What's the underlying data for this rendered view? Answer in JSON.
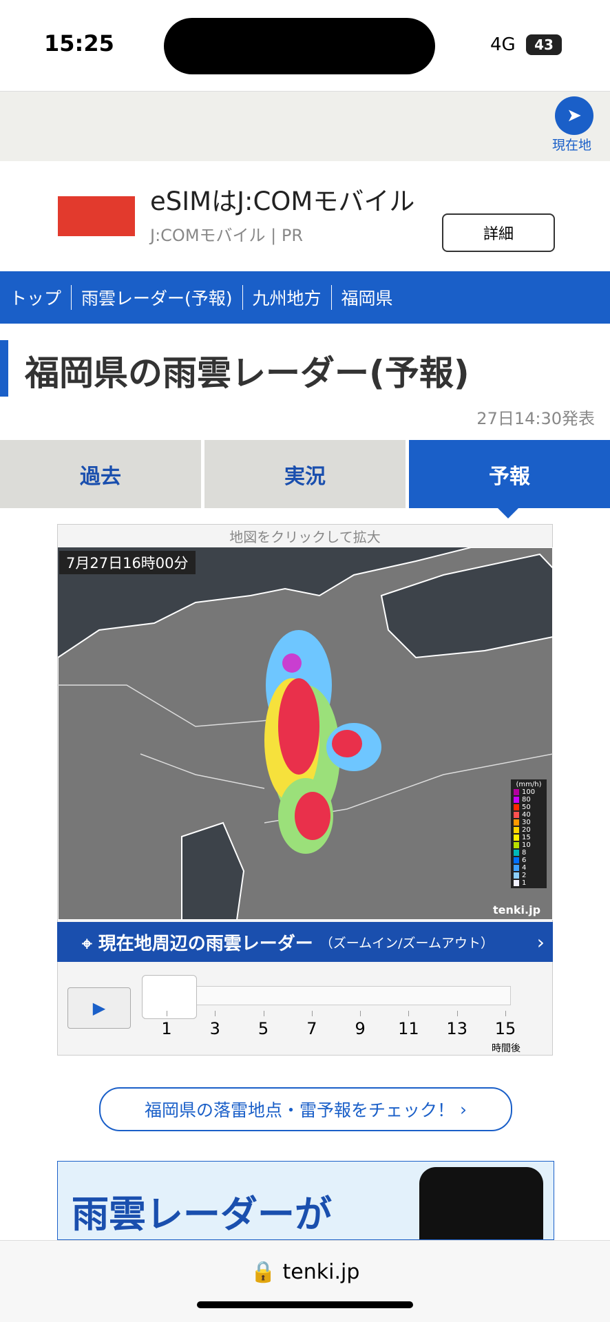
{
  "status_bar": {
    "time": "15:25",
    "network": "4G",
    "battery": "43"
  },
  "location_button": "現在地",
  "ad": {
    "title": "eSIMはJ:COMモバイル",
    "advertiser": "J:COMモバイル",
    "tag": "PR",
    "button": "詳細"
  },
  "breadcrumbs": [
    "トップ",
    "雨雲レーダー(予報)",
    "九州地方",
    "福岡県"
  ],
  "page_title": "福岡県の雨雲レーダー(予報)",
  "issued": "27日14:30発表",
  "tabs": [
    "過去",
    "実況",
    "予報"
  ],
  "map": {
    "caption": "地図をクリックして拡大",
    "timestamp": "7月27日16時00分",
    "legend_unit": "(mm/h)",
    "legend": [
      "100",
      "80",
      "50",
      "40",
      "30",
      "20",
      "15",
      "10",
      "8",
      "6",
      "4",
      "2",
      "1"
    ],
    "credit": "tenki.jp"
  },
  "nearby_link": {
    "label": "現在地周辺の雨雲レーダー",
    "sub": "（ズームイン/ズームアウト）"
  },
  "slider": {
    "ticks": [
      "1",
      "3",
      "5",
      "7",
      "9",
      "11",
      "13",
      "15"
    ],
    "unit": "時間後"
  },
  "thunder_link": "福岡県の落雷地点・雷予報をチェック！",
  "banner": {
    "text": "雨雲レーダーが"
  },
  "url": "tenki.jp"
}
